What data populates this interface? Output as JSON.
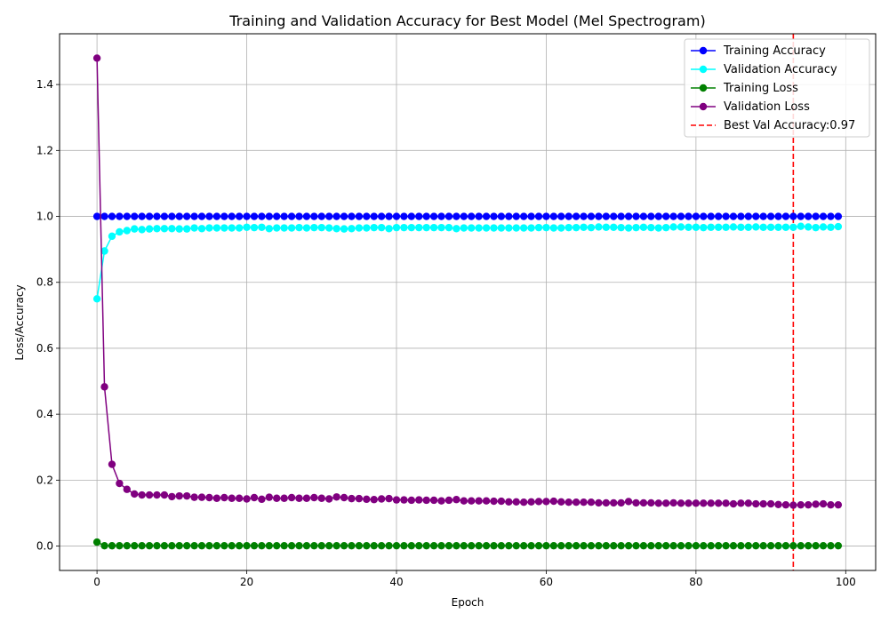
{
  "chart_data": {
    "type": "line",
    "title": "Training and Validation Accuracy for Best Model (Mel Spectrogram)",
    "xlabel": "Epoch",
    "ylabel": "Loss/Accuracy",
    "xlim": [
      -5,
      104
    ],
    "ylim": [
      -0.074,
      1.554
    ],
    "xticks": [
      0,
      20,
      40,
      60,
      80,
      100
    ],
    "yticks": [
      0.0,
      0.2,
      0.4,
      0.6,
      0.8,
      1.0,
      1.2,
      1.4
    ],
    "grid": true,
    "legend_position": "top-right",
    "x": [
      0,
      1,
      2,
      3,
      4,
      5,
      6,
      7,
      8,
      9,
      10,
      11,
      12,
      13,
      14,
      15,
      16,
      17,
      18,
      19,
      20,
      21,
      22,
      23,
      24,
      25,
      26,
      27,
      28,
      29,
      30,
      31,
      32,
      33,
      34,
      35,
      36,
      37,
      38,
      39,
      40,
      41,
      42,
      43,
      44,
      45,
      46,
      47,
      48,
      49,
      50,
      51,
      52,
      53,
      54,
      55,
      56,
      57,
      58,
      59,
      60,
      61,
      62,
      63,
      64,
      65,
      66,
      67,
      68,
      69,
      70,
      71,
      72,
      73,
      74,
      75,
      76,
      77,
      78,
      79,
      80,
      81,
      82,
      83,
      84,
      85,
      86,
      87,
      88,
      89,
      90,
      91,
      92,
      93,
      94,
      95,
      96,
      97,
      98,
      99
    ],
    "series": [
      {
        "name": "Training Accuracy",
        "color": "#0000ff",
        "values": [
          1.0,
          1.0,
          1.0,
          1.0,
          1.0,
          1.0,
          1.0,
          1.0,
          1.0,
          1.0,
          1.0,
          1.0,
          1.0,
          1.0,
          1.0,
          1.0,
          1.0,
          1.0,
          1.0,
          1.0,
          1.0,
          1.0,
          1.0,
          1.0,
          1.0,
          1.0,
          1.0,
          1.0,
          1.0,
          1.0,
          1.0,
          1.0,
          1.0,
          1.0,
          1.0,
          1.0,
          1.0,
          1.0,
          1.0,
          1.0,
          1.0,
          1.0,
          1.0,
          1.0,
          1.0,
          1.0,
          1.0,
          1.0,
          1.0,
          1.0,
          1.0,
          1.0,
          1.0,
          1.0,
          1.0,
          1.0,
          1.0,
          1.0,
          1.0,
          1.0,
          1.0,
          1.0,
          1.0,
          1.0,
          1.0,
          1.0,
          1.0,
          1.0,
          1.0,
          1.0,
          1.0,
          1.0,
          1.0,
          1.0,
          1.0,
          1.0,
          1.0,
          1.0,
          1.0,
          1.0,
          1.0,
          1.0,
          1.0,
          1.0,
          1.0,
          1.0,
          1.0,
          1.0,
          1.0,
          1.0,
          1.0,
          1.0,
          1.0,
          1.0,
          1.0,
          1.0,
          1.0,
          1.0,
          1.0,
          1.0
        ]
      },
      {
        "name": "Validation Accuracy",
        "color": "#00ffff",
        "values": [
          0.75,
          0.895,
          0.94,
          0.953,
          0.957,
          0.962,
          0.96,
          0.962,
          0.963,
          0.963,
          0.963,
          0.962,
          0.962,
          0.965,
          0.963,
          0.965,
          0.965,
          0.965,
          0.965,
          0.965,
          0.967,
          0.966,
          0.967,
          0.963,
          0.965,
          0.965,
          0.965,
          0.966,
          0.965,
          0.966,
          0.966,
          0.965,
          0.963,
          0.962,
          0.963,
          0.965,
          0.965,
          0.966,
          0.966,
          0.963,
          0.966,
          0.966,
          0.966,
          0.966,
          0.966,
          0.966,
          0.966,
          0.966,
          0.963,
          0.965,
          0.965,
          0.965,
          0.965,
          0.965,
          0.965,
          0.965,
          0.965,
          0.965,
          0.965,
          0.966,
          0.966,
          0.965,
          0.965,
          0.966,
          0.966,
          0.967,
          0.966,
          0.968,
          0.967,
          0.967,
          0.966,
          0.965,
          0.966,
          0.967,
          0.966,
          0.965,
          0.966,
          0.968,
          0.968,
          0.967,
          0.967,
          0.966,
          0.967,
          0.967,
          0.967,
          0.968,
          0.967,
          0.967,
          0.968,
          0.967,
          0.967,
          0.967,
          0.967,
          0.967,
          0.97,
          0.968,
          0.966,
          0.968,
          0.967,
          0.969
        ]
      },
      {
        "name": "Training Loss",
        "color": "#008000",
        "values": [
          0.012,
          0.001,
          0.001,
          0.001,
          0.001,
          0.001,
          0.001,
          0.001,
          0.001,
          0.001,
          0.001,
          0.001,
          0.001,
          0.001,
          0.001,
          0.001,
          0.001,
          0.001,
          0.001,
          0.001,
          0.001,
          0.001,
          0.001,
          0.001,
          0.001,
          0.001,
          0.001,
          0.001,
          0.001,
          0.001,
          0.001,
          0.001,
          0.001,
          0.001,
          0.001,
          0.001,
          0.001,
          0.001,
          0.001,
          0.001,
          0.001,
          0.001,
          0.001,
          0.001,
          0.001,
          0.001,
          0.001,
          0.001,
          0.001,
          0.001,
          0.001,
          0.001,
          0.001,
          0.001,
          0.001,
          0.001,
          0.001,
          0.001,
          0.001,
          0.001,
          0.001,
          0.001,
          0.001,
          0.001,
          0.001,
          0.001,
          0.001,
          0.001,
          0.001,
          0.001,
          0.001,
          0.001,
          0.001,
          0.001,
          0.001,
          0.001,
          0.001,
          0.001,
          0.001,
          0.001,
          0.001,
          0.001,
          0.001,
          0.001,
          0.001,
          0.001,
          0.001,
          0.001,
          0.001,
          0.001,
          0.001,
          0.001,
          0.001,
          0.001,
          0.001,
          0.001,
          0.001,
          0.001,
          0.001,
          0.001
        ]
      },
      {
        "name": "Validation Loss",
        "color": "#800080",
        "values": [
          1.48,
          0.483,
          0.248,
          0.19,
          0.172,
          0.158,
          0.155,
          0.155,
          0.155,
          0.155,
          0.15,
          0.152,
          0.152,
          0.148,
          0.148,
          0.147,
          0.145,
          0.147,
          0.145,
          0.145,
          0.143,
          0.147,
          0.142,
          0.148,
          0.145,
          0.145,
          0.147,
          0.145,
          0.145,
          0.147,
          0.145,
          0.143,
          0.149,
          0.147,
          0.144,
          0.144,
          0.142,
          0.141,
          0.143,
          0.144,
          0.14,
          0.14,
          0.139,
          0.14,
          0.139,
          0.139,
          0.137,
          0.139,
          0.141,
          0.137,
          0.137,
          0.137,
          0.137,
          0.136,
          0.136,
          0.134,
          0.134,
          0.133,
          0.134,
          0.135,
          0.135,
          0.136,
          0.134,
          0.133,
          0.133,
          0.133,
          0.133,
          0.131,
          0.131,
          0.131,
          0.131,
          0.135,
          0.131,
          0.131,
          0.131,
          0.13,
          0.13,
          0.131,
          0.13,
          0.13,
          0.13,
          0.13,
          0.13,
          0.13,
          0.13,
          0.128,
          0.13,
          0.13,
          0.128,
          0.128,
          0.128,
          0.126,
          0.125,
          0.124,
          0.125,
          0.125,
          0.127,
          0.128,
          0.125,
          0.125
        ]
      }
    ],
    "vline": {
      "name": "Best Val Accuracy:0.97",
      "x": 93,
      "color": "#ff0000",
      "style": "dashed"
    }
  }
}
